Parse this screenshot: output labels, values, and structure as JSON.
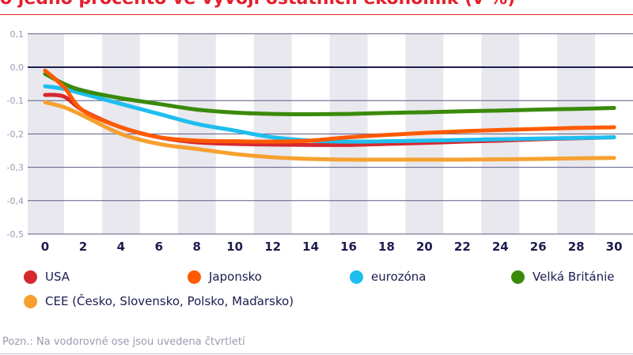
{
  "title": "o jedno procento ve vývoji ostatních ekonomik (v %)",
  "note": "Pozn.: Na vodorovné ose jsou uvedena čtvrtletí",
  "chart_data": {
    "type": "line",
    "title": "o jedno procento ve vývoji ostatních ekonomik (v %)",
    "xlabel": "",
    "ylabel": "",
    "xlim": [
      -0.9,
      31
    ],
    "ylim": [
      -0.5,
      0.1
    ],
    "xticks": [
      "0",
      "2",
      "4",
      "6",
      "8",
      "10",
      "12",
      "14",
      "16",
      "18",
      "20",
      "22",
      "24",
      "26",
      "28",
      "30"
    ],
    "yticks": [
      "0,1",
      "0,0",
      "-0,1",
      "-0,2",
      "-0,3",
      "-0,4",
      "-0,5"
    ],
    "grid": true,
    "legend_position": "bottom",
    "x": [
      0,
      1,
      2,
      4,
      6,
      8,
      10,
      12,
      14,
      16,
      18,
      20,
      22,
      24,
      26,
      28,
      30
    ],
    "series": [
      {
        "name": "USA",
        "color": "#d7282f",
        "values": [
          -0.083,
          -0.088,
          -0.13,
          -0.18,
          -0.21,
          -0.225,
          -0.23,
          -0.232,
          -0.233,
          -0.233,
          -0.23,
          -0.227,
          -0.223,
          -0.22,
          -0.216,
          -0.213,
          -0.21
        ]
      },
      {
        "name": "eurozóna",
        "color": "#1ebeef",
        "values": [
          -0.057,
          -0.065,
          -0.08,
          -0.11,
          -0.14,
          -0.17,
          -0.19,
          -0.21,
          -0.22,
          -0.223,
          -0.222,
          -0.22,
          -0.218,
          -0.216,
          -0.214,
          -0.212,
          -0.21
        ]
      },
      {
        "name": "Velká Británie",
        "color": "#3a8a0a",
        "values": [
          -0.02,
          -0.05,
          -0.07,
          -0.093,
          -0.11,
          -0.127,
          -0.136,
          -0.14,
          -0.141,
          -0.14,
          -0.137,
          -0.135,
          -0.132,
          -0.13,
          -0.127,
          -0.125,
          -0.122
        ]
      },
      {
        "name": "CEE (Česko, Slovensko, Polsko, Maďarsko)",
        "color": "#f7a030",
        "values": [
          -0.105,
          -0.12,
          -0.145,
          -0.2,
          -0.23,
          -0.245,
          -0.26,
          -0.27,
          -0.275,
          -0.277,
          -0.277,
          -0.277,
          -0.277,
          -0.276,
          -0.275,
          -0.273,
          -0.272
        ]
      },
      {
        "name": "Japonsko",
        "color": "#ff5a00",
        "values": [
          -0.01,
          -0.06,
          -0.13,
          -0.18,
          -0.21,
          -0.22,
          -0.222,
          -0.223,
          -0.22,
          -0.21,
          -0.203,
          -0.197,
          -0.192,
          -0.188,
          -0.185,
          -0.182,
          -0.18
        ]
      }
    ]
  },
  "legend": [
    {
      "label": "USA",
      "color": "#d7282f"
    },
    {
      "label": "Japonsko",
      "color": "#ff5a00"
    },
    {
      "label": "eurozóna",
      "color": "#1ebeef"
    },
    {
      "label": "Velká Británie",
      "color": "#3a8a0a"
    },
    {
      "label": "CEE (Česko, Slovensko, Polsko, Maďarsko)",
      "color": "#f7a030"
    }
  ]
}
